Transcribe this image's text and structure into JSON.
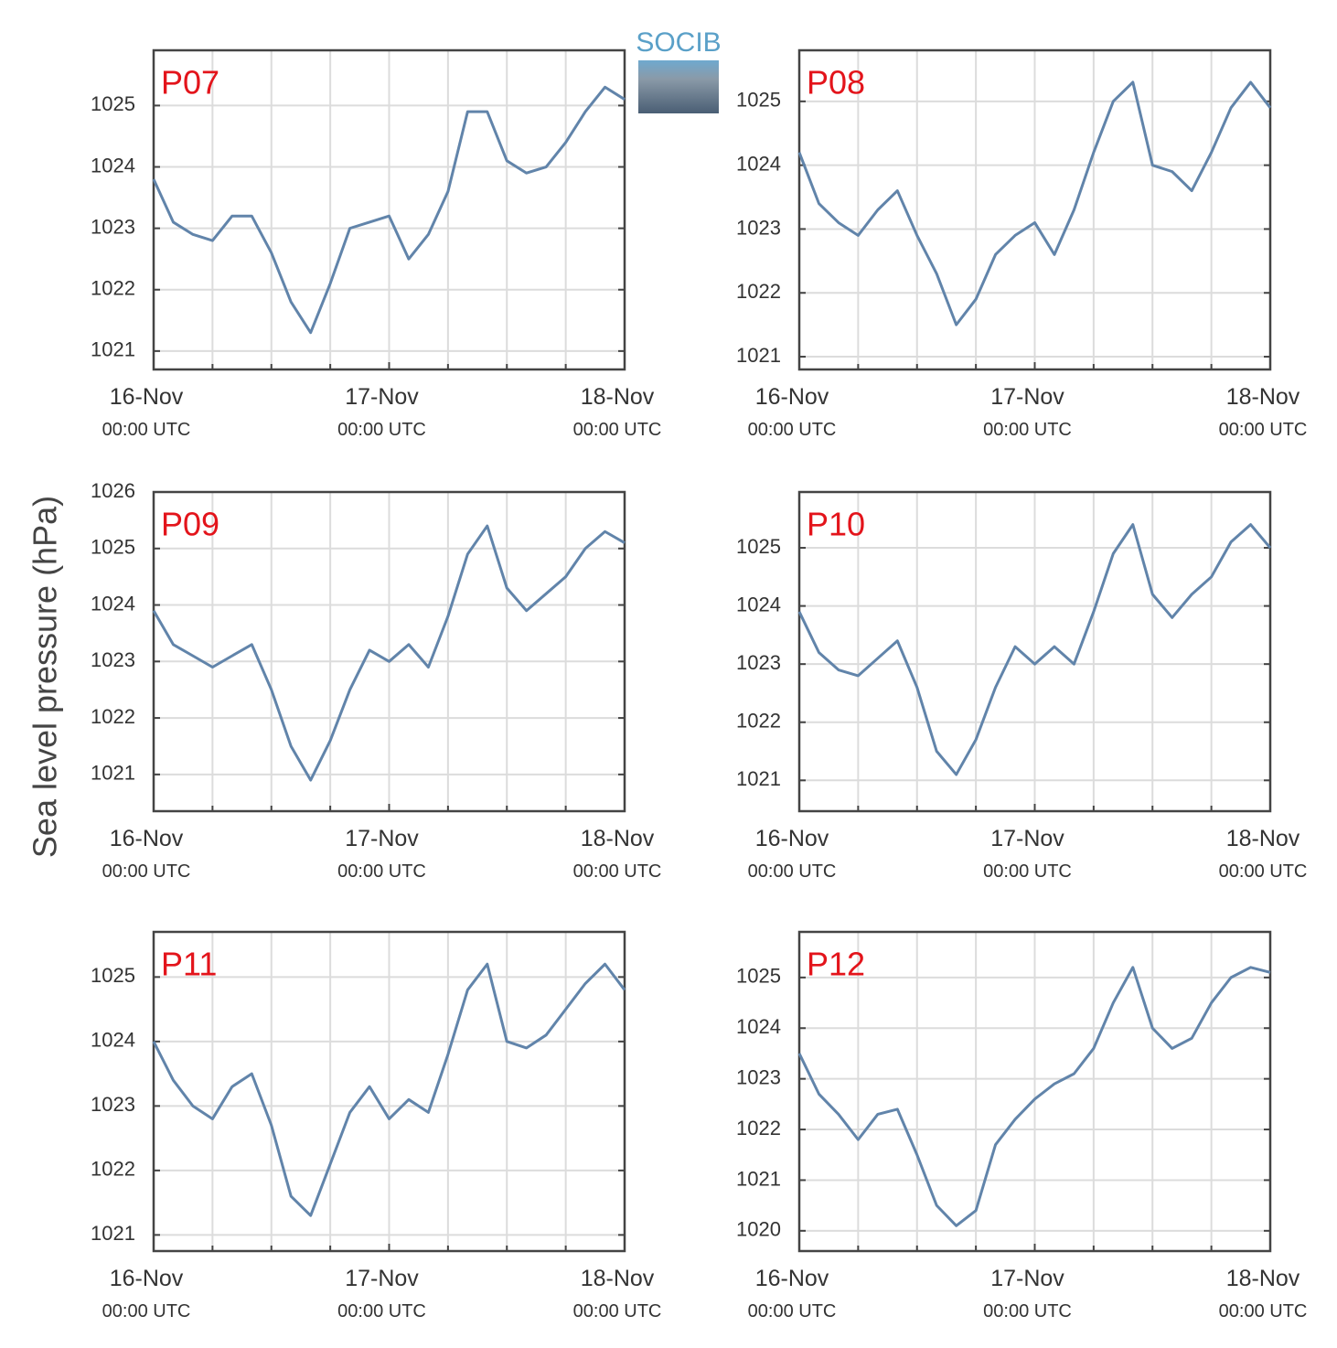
{
  "logo": "SOCIB",
  "ylabel": "Sea level pressure (hPa)",
  "chart_data": [
    {
      "type": "line",
      "title": "P07",
      "x": [
        "16-Nov 00:00",
        "16-Nov 02:00",
        "16-Nov 04:00",
        "16-Nov 06:00",
        "16-Nov 08:00",
        "16-Nov 10:00",
        "16-Nov 12:00",
        "16-Nov 14:00",
        "16-Nov 16:00",
        "16-Nov 18:00",
        "16-Nov 20:00",
        "16-Nov 22:00",
        "17-Nov 00:00",
        "17-Nov 02:00",
        "17-Nov 04:00",
        "17-Nov 06:00",
        "17-Nov 08:00",
        "17-Nov 10:00",
        "17-Nov 12:00",
        "17-Nov 14:00",
        "17-Nov 16:00",
        "17-Nov 18:00",
        "17-Nov 20:00",
        "17-Nov 22:00",
        "18-Nov 00:00"
      ],
      "series": [
        {
          "color": "#6184aa",
          "values": [
            1023.8,
            1023.1,
            1022.9,
            1022.8,
            1023.2,
            1023.2,
            1022.6,
            1021.8,
            1021.3,
            1022.1,
            1023.0,
            1023.1,
            1023.2,
            1022.5,
            1022.9,
            1023.6,
            1024.9,
            1024.9,
            1024.1,
            1023.9,
            1024.0,
            1024.4,
            1024.9,
            1025.3,
            1025.1
          ]
        }
      ],
      "xlim": [
        "16-Nov 00:00",
        "18-Nov 00:00"
      ],
      "xticks": [
        {
          "value": "16-Nov 00:00",
          "label": "16-Nov\n00:00 UTC"
        },
        {
          "value": "17-Nov 00:00",
          "label": "17-Nov\n00:00 UTC"
        },
        {
          "value": "18-Nov 00:00",
          "label": "18-Nov\n00:00 UTC"
        }
      ],
      "ylim": [
        1020.7,
        1025.9
      ],
      "yticks": [
        1021,
        1022,
        1023,
        1024,
        1025
      ],
      "grid": true
    },
    {
      "type": "line",
      "title": "P08",
      "x": [
        "16-Nov 00:00",
        "16-Nov 02:00",
        "16-Nov 04:00",
        "16-Nov 06:00",
        "16-Nov 08:00",
        "16-Nov 10:00",
        "16-Nov 12:00",
        "16-Nov 14:00",
        "16-Nov 16:00",
        "16-Nov 18:00",
        "16-Nov 20:00",
        "16-Nov 22:00",
        "17-Nov 00:00",
        "17-Nov 02:00",
        "17-Nov 04:00",
        "17-Nov 06:00",
        "17-Nov 08:00",
        "17-Nov 10:00",
        "17-Nov 12:00",
        "17-Nov 14:00",
        "17-Nov 16:00",
        "17-Nov 18:00",
        "17-Nov 20:00",
        "17-Nov 22:00",
        "18-Nov 00:00"
      ],
      "series": [
        {
          "color": "#6184aa",
          "values": [
            1024.2,
            1023.4,
            1023.1,
            1022.9,
            1023.3,
            1023.6,
            1022.9,
            1022.3,
            1021.5,
            1021.9,
            1022.6,
            1022.9,
            1023.1,
            1022.6,
            1023.3,
            1024.2,
            1025.0,
            1025.3,
            1024.0,
            1023.9,
            1023.6,
            1024.2,
            1024.9,
            1025.3,
            1024.9
          ]
        }
      ],
      "xlim": [
        "16-Nov 00:00",
        "18-Nov 00:00"
      ],
      "xticks": [
        {
          "value": "16-Nov 00:00",
          "label": "16-Nov\n00:00 UTC"
        },
        {
          "value": "17-Nov 00:00",
          "label": "17-Nov\n00:00 UTC"
        },
        {
          "value": "18-Nov 00:00",
          "label": "18-Nov\n00:00 UTC"
        }
      ],
      "ylim": [
        1020.8,
        1025.8
      ],
      "yticks": [
        1021,
        1022,
        1023,
        1024,
        1025
      ],
      "grid": true
    },
    {
      "type": "line",
      "title": "P09",
      "x": [
        "16-Nov 00:00",
        "16-Nov 02:00",
        "16-Nov 04:00",
        "16-Nov 06:00",
        "16-Nov 08:00",
        "16-Nov 10:00",
        "16-Nov 12:00",
        "16-Nov 14:00",
        "16-Nov 16:00",
        "16-Nov 18:00",
        "16-Nov 20:00",
        "16-Nov 22:00",
        "17-Nov 00:00",
        "17-Nov 02:00",
        "17-Nov 04:00",
        "17-Nov 06:00",
        "17-Nov 08:00",
        "17-Nov 10:00",
        "17-Nov 12:00",
        "17-Nov 14:00",
        "17-Nov 16:00",
        "17-Nov 18:00",
        "17-Nov 20:00",
        "17-Nov 22:00",
        "18-Nov 00:00"
      ],
      "series": [
        {
          "color": "#6184aa",
          "values": [
            1023.9,
            1023.3,
            1023.1,
            1022.9,
            1023.1,
            1023.3,
            1022.5,
            1021.5,
            1020.9,
            1021.6,
            1022.5,
            1023.2,
            1023.0,
            1023.3,
            1022.9,
            1023.8,
            1024.9,
            1025.4,
            1024.3,
            1023.9,
            1024.2,
            1024.5,
            1025.0,
            1025.3,
            1025.1
          ]
        }
      ],
      "xlim": [
        "16-Nov 00:00",
        "18-Nov 00:00"
      ],
      "xticks": [
        {
          "value": "16-Nov 00:00",
          "label": "16-Nov\n00:00 UTC"
        },
        {
          "value": "17-Nov 00:00",
          "label": "17-Nov\n00:00 UTC"
        },
        {
          "value": "18-Nov 00:00",
          "label": "18-Nov\n00:00 UTC"
        }
      ],
      "ylim": [
        1020.35,
        1026
      ],
      "yticks": [
        1021,
        1022,
        1023,
        1024,
        1025,
        1026
      ],
      "grid": true
    },
    {
      "type": "line",
      "title": "P10",
      "x": [
        "16-Nov 00:00",
        "16-Nov 02:00",
        "16-Nov 04:00",
        "16-Nov 06:00",
        "16-Nov 08:00",
        "16-Nov 10:00",
        "16-Nov 12:00",
        "16-Nov 14:00",
        "16-Nov 16:00",
        "16-Nov 18:00",
        "16-Nov 20:00",
        "16-Nov 22:00",
        "17-Nov 00:00",
        "17-Nov 02:00",
        "17-Nov 04:00",
        "17-Nov 06:00",
        "17-Nov 08:00",
        "17-Nov 10:00",
        "17-Nov 12:00",
        "17-Nov 14:00",
        "17-Nov 16:00",
        "17-Nov 18:00",
        "17-Nov 20:00",
        "17-Nov 22:00",
        "18-Nov 00:00"
      ],
      "series": [
        {
          "color": "#6184aa",
          "values": [
            1023.9,
            1023.2,
            1022.9,
            1022.8,
            1023.1,
            1023.4,
            1022.6,
            1021.5,
            1021.1,
            1021.7,
            1022.6,
            1023.3,
            1023.0,
            1023.3,
            1023.0,
            1023.9,
            1024.9,
            1025.4,
            1024.2,
            1023.8,
            1024.2,
            1024.5,
            1025.1,
            1025.4,
            1025.0
          ]
        }
      ],
      "xlim": [
        "16-Nov 00:00",
        "18-Nov 00:00"
      ],
      "xticks": [
        {
          "value": "16-Nov 00:00",
          "label": "16-Nov\n00:00 UTC"
        },
        {
          "value": "17-Nov 00:00",
          "label": "17-Nov\n00:00 UTC"
        },
        {
          "value": "18-Nov 00:00",
          "label": "18-Nov\n00:00 UTC"
        }
      ],
      "ylim": [
        1020.47,
        1025.96
      ],
      "yticks": [
        1021,
        1022,
        1023,
        1024,
        1025
      ],
      "grid": true
    },
    {
      "type": "line",
      "title": "P11",
      "x": [
        "16-Nov 00:00",
        "16-Nov 02:00",
        "16-Nov 04:00",
        "16-Nov 06:00",
        "16-Nov 08:00",
        "16-Nov 10:00",
        "16-Nov 12:00",
        "16-Nov 14:00",
        "16-Nov 16:00",
        "16-Nov 18:00",
        "16-Nov 20:00",
        "16-Nov 22:00",
        "17-Nov 00:00",
        "17-Nov 02:00",
        "17-Nov 04:00",
        "17-Nov 06:00",
        "17-Nov 08:00",
        "17-Nov 10:00",
        "17-Nov 12:00",
        "17-Nov 14:00",
        "17-Nov 16:00",
        "17-Nov 18:00",
        "17-Nov 20:00",
        "17-Nov 22:00",
        "18-Nov 00:00"
      ],
      "series": [
        {
          "color": "#6184aa",
          "values": [
            1024.0,
            1023.4,
            1023.0,
            1022.8,
            1023.3,
            1023.5,
            1022.7,
            1021.6,
            1021.3,
            1022.1,
            1022.9,
            1023.3,
            1022.8,
            1023.1,
            1022.9,
            1023.8,
            1024.8,
            1025.2,
            1024.0,
            1023.9,
            1024.1,
            1024.5,
            1024.9,
            1025.2,
            1024.8
          ]
        }
      ],
      "xlim": [
        "16-Nov 00:00",
        "18-Nov 00:00"
      ],
      "xticks": [
        {
          "value": "16-Nov 00:00",
          "label": "16-Nov\n00:00 UTC"
        },
        {
          "value": "17-Nov 00:00",
          "label": "17-Nov\n00:00 UTC"
        },
        {
          "value": "18-Nov 00:00",
          "label": "18-Nov\n00:00 UTC"
        }
      ],
      "ylim": [
        1020.75,
        1025.7
      ],
      "yticks": [
        1021,
        1022,
        1023,
        1024,
        1025
      ],
      "grid": true
    },
    {
      "type": "line",
      "title": "P12",
      "x": [
        "16-Nov 00:00",
        "16-Nov 02:00",
        "16-Nov 04:00",
        "16-Nov 06:00",
        "16-Nov 08:00",
        "16-Nov 10:00",
        "16-Nov 12:00",
        "16-Nov 14:00",
        "16-Nov 16:00",
        "16-Nov 18:00",
        "16-Nov 20:00",
        "16-Nov 22:00",
        "17-Nov 00:00",
        "17-Nov 02:00",
        "17-Nov 04:00",
        "17-Nov 06:00",
        "17-Nov 08:00",
        "17-Nov 10:00",
        "17-Nov 12:00",
        "17-Nov 14:00",
        "17-Nov 16:00",
        "17-Nov 18:00",
        "17-Nov 20:00",
        "17-Nov 22:00",
        "18-Nov 00:00"
      ],
      "series": [
        {
          "color": "#6184aa",
          "values": [
            1023.5,
            1022.7,
            1022.3,
            1021.8,
            1022.3,
            1022.4,
            1021.5,
            1020.5,
            1020.1,
            1020.4,
            1021.7,
            1022.2,
            1022.6,
            1022.9,
            1023.1,
            1023.6,
            1024.5,
            1025.2,
            1024.0,
            1023.6,
            1023.8,
            1024.5,
            1025.0,
            1025.2,
            1025.1
          ]
        }
      ],
      "xlim": [
        "16-Nov 00:00",
        "18-Nov 00:00"
      ],
      "xticks": [
        {
          "value": "16-Nov 00:00",
          "label": "16-Nov\n00:00 UTC"
        },
        {
          "value": "17-Nov 00:00",
          "label": "17-Nov\n00:00 UTC"
        },
        {
          "value": "18-Nov 00:00",
          "label": "18-Nov\n00:00 UTC"
        }
      ],
      "ylim": [
        1019.6,
        1025.9
      ],
      "yticks": [
        1020,
        1021,
        1022,
        1023,
        1024,
        1025
      ],
      "grid": true
    }
  ]
}
